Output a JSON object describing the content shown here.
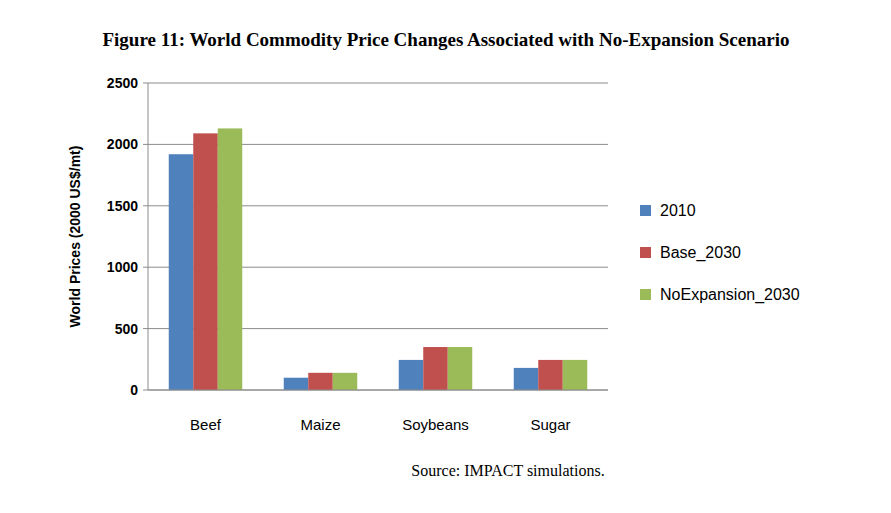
{
  "chart_data": {
    "type": "bar",
    "title": "Figure 11: World Commodity Price Changes Associated with No-Expansion Scenario",
    "y_label": "World Prices  (2000 US$/mt)",
    "categories": [
      "Beef",
      "Maize",
      "Soybeans",
      "Sugar"
    ],
    "series": [
      {
        "name": "2010",
        "color": "#4f81bd",
        "values": [
          1920,
          100,
          245,
          180
        ]
      },
      {
        "name": "Base_2030",
        "color": "#c0504d",
        "values": [
          2090,
          140,
          350,
          245
        ]
      },
      {
        "name": "NoExpansion_2030",
        "color": "#9bbb59",
        "values": [
          2130,
          140,
          350,
          245
        ]
      }
    ],
    "ylim": [
      0,
      2500
    ],
    "yticks": [
      0,
      500,
      1000,
      1500,
      2000,
      2500
    ],
    "grid": true,
    "legend": "right",
    "source": "Source: IMPACT simulations."
  }
}
